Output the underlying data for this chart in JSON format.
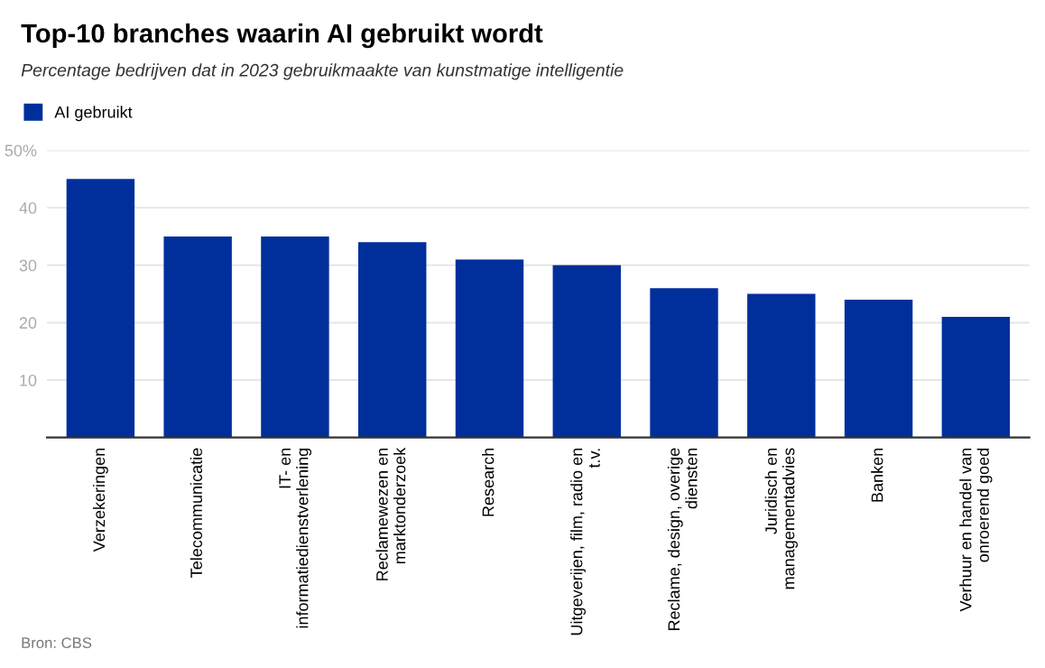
{
  "chart_data": {
    "type": "bar",
    "title": "Top-10 branches waarin AI gebruikt wordt",
    "subtitle": "Percentage bedrijven dat in 2023 gebruikmaakte van kunstmatige intelligentie",
    "categories": [
      "Verzekeringen",
      "Telecommunicatie",
      "IT- en\ninformatiedienstverlening",
      "Reclamewezen en\nmarktonderzoek",
      "Research",
      "Uitgeverijen, film, radio en\nt.v.",
      "Reclame, design, overige\ndiensten",
      "Juridisch en\nmanagementadvies",
      "Banken",
      "Verhuur en handel van\nonroerend goed"
    ],
    "series": [
      {
        "name": "AI gebruikt",
        "color": "#002f9c",
        "values": [
          45,
          35,
          35,
          34,
          31,
          30,
          26,
          25,
          24,
          21
        ]
      }
    ],
    "ylim": [
      0,
      50
    ],
    "yticks": [
      10,
      20,
      30,
      40,
      {
        "value": 50,
        "label": "50%"
      }
    ],
    "grid": "y",
    "legend": "top left",
    "annotations": [
      "Bron: CBS"
    ]
  }
}
